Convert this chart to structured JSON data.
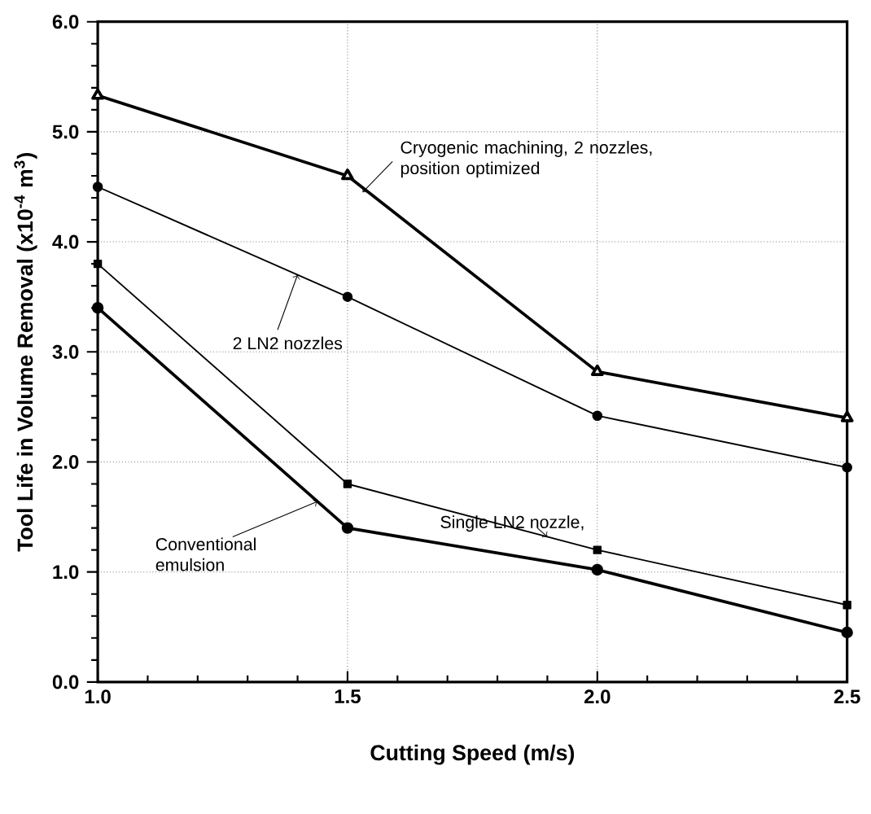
{
  "chart_data": {
    "type": "line",
    "xlabel": "Cutting Speed (m/s)",
    "ylabel": "Tool Life in Volume Removal (x10$^{-4}$ m$^{3}$)",
    "x": [
      1.0,
      1.5,
      2.0,
      2.5
    ],
    "series": [
      {
        "color": "#000000",
        "marker": "triangle",
        "values": [
          5.33,
          4.6,
          2.82,
          2.4
        ]
      },
      {
        "color": "#000000",
        "marker": "circle",
        "values": [
          4.5,
          3.5,
          2.42,
          1.95
        ]
      },
      {
        "color": "#000000",
        "marker": "square",
        "values": [
          3.8,
          1.8,
          1.2,
          0.7
        ]
      },
      {
        "color": "#000000",
        "marker": "circle",
        "values": [
          3.4,
          1.4,
          1.02,
          0.45
        ]
      }
    ],
    "xlim": [
      1.0,
      2.5
    ],
    "ylim": [
      0,
      6
    ],
    "xticks": [
      {
        "value": 1.0,
        "label": "1.0"
      },
      {
        "value": 1.5,
        "label": "1.5"
      },
      {
        "value": 2.0,
        "label": "2.0"
      },
      {
        "value": 2.5,
        "label": "2.5"
      }
    ],
    "yticks": [
      {
        "value": 0,
        "label": "0.0"
      },
      {
        "value": 1,
        "label": "1.0"
      },
      {
        "value": 2,
        "label": "2.0"
      },
      {
        "value": 3,
        "label": "3.0"
      },
      {
        "value": 4,
        "label": "4.0"
      },
      {
        "value": 5,
        "label": "5.0"
      },
      {
        "value": 6,
        "label": "6.0"
      }
    ],
    "grid": true,
    "line_style": "solid",
    "annotations": [
      {
        "text": "Cryogenic machining, 2 nozzles, position optimized",
        "x": 1.53,
        "y": 4.45
      },
      {
        "text": "2 LN2 nozzles",
        "x": 1.4,
        "y": 3.7
      },
      {
        "text": "Single LN2 nozzle,",
        "x": 1.9,
        "y": 1.32
      },
      {
        "text": "Conventional emulsion",
        "x": 1.44,
        "y": 1.64
      }
    ]
  }
}
